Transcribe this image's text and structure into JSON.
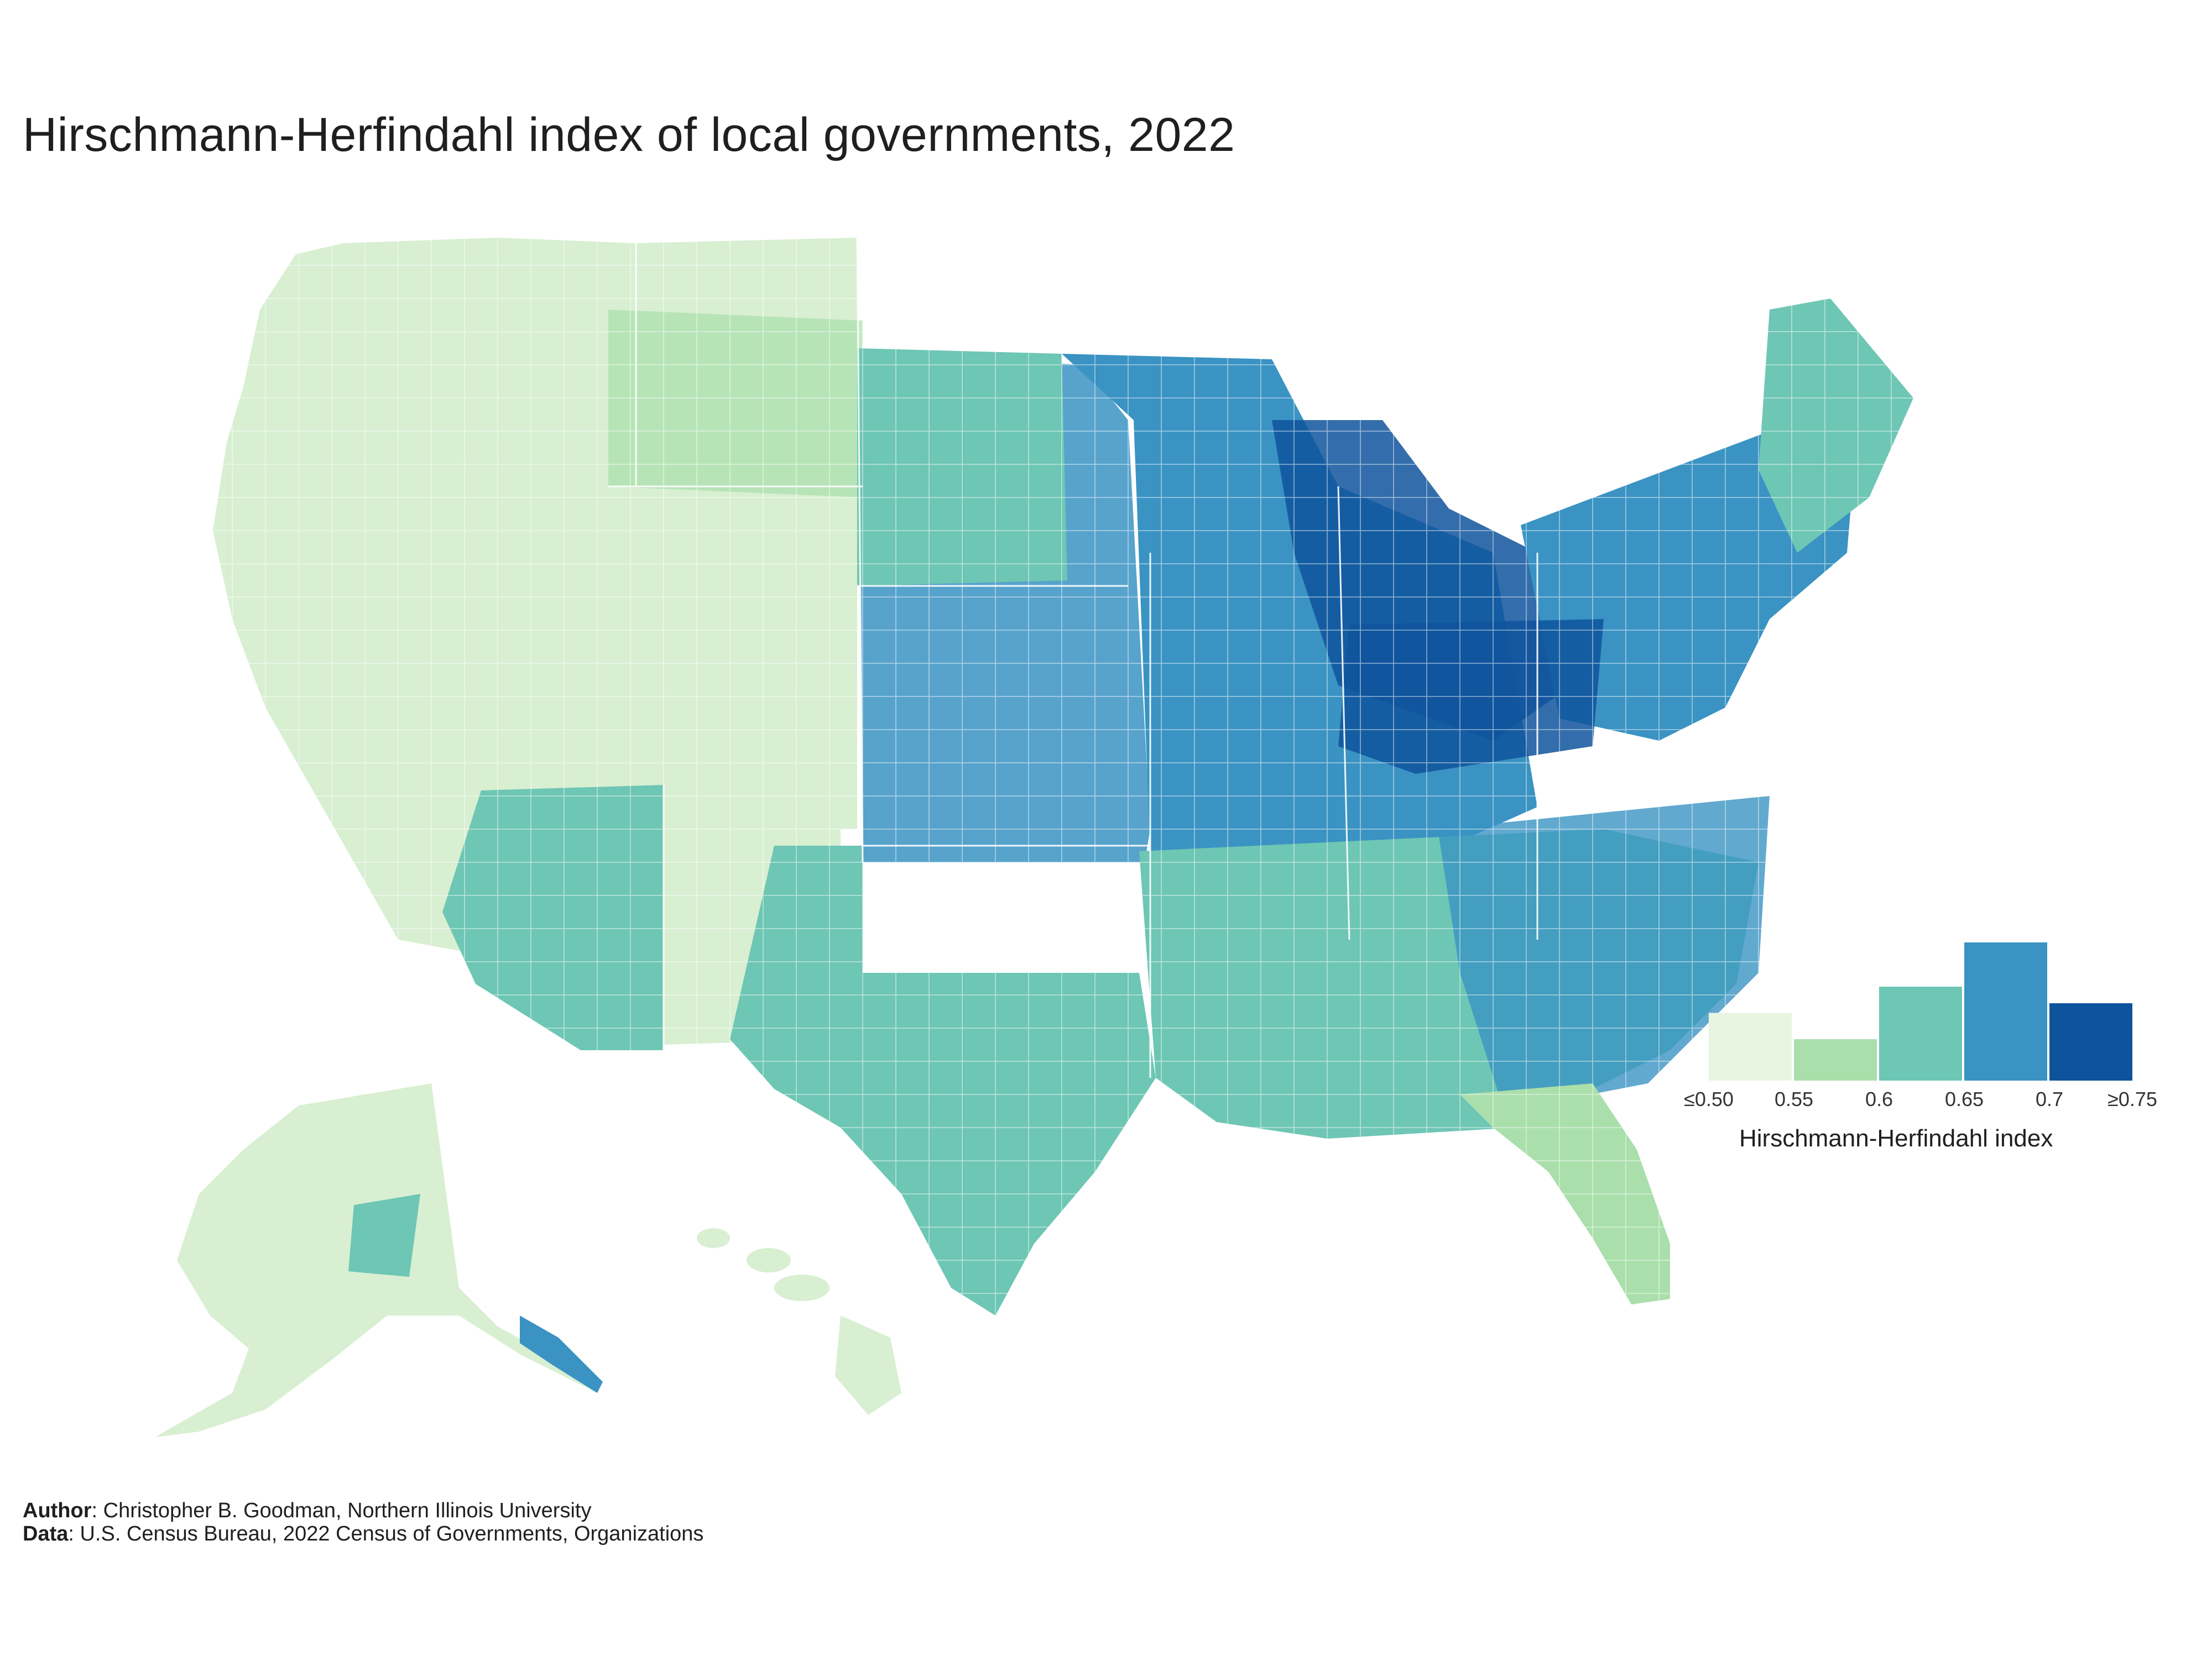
{
  "title": "Hirschmann-Herfindahl index of local governments, 2022",
  "legend": {
    "title": "Hirschmann-Herfindahl index",
    "ticks": [
      "≤0.50",
      "0.55",
      "0.6",
      "0.65",
      "0.7",
      "≥0.75"
    ],
    "bins": [
      {
        "range": "≤0.50–0.55",
        "color": "#e8f6e1",
        "relative_count": 0.49
      },
      {
        "range": "0.55–0.6",
        "color": "#aadfab",
        "relative_count": 0.3
      },
      {
        "range": "0.6–0.65",
        "color": "#6ec6b4",
        "relative_count": 0.68
      },
      {
        "range": "0.65–0.7",
        "color": "#3a93c3",
        "relative_count": 1.0
      },
      {
        "range": "≥0.7–0.75",
        "color": "#0f539c",
        "relative_count": 0.56
      }
    ]
  },
  "colors": {
    "lowest": "#d8efd2",
    "low": "#aadfab",
    "mid": "#6ec6b4",
    "high": "#3a93c3",
    "highest": "#0f539c",
    "border": "#ffffff"
  },
  "footer": {
    "author_label": "Author",
    "author_text": ": Christopher B. Goodman, Northern Illinois University",
    "data_label": "Data",
    "data_text": ": U.S. Census Bureau, 2022 Census of Governments, Organizations"
  }
}
